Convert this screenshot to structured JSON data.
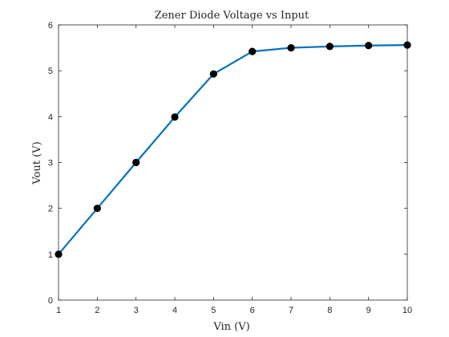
{
  "chart_data": {
    "type": "line",
    "title": "Zener Diode Voltage vs Input",
    "xlabel": "Vin (V)",
    "ylabel": "Vout (V)",
    "xlim": [
      1,
      10
    ],
    "ylim": [
      0,
      6
    ],
    "xticks": [
      1,
      2,
      3,
      4,
      5,
      6,
      7,
      8,
      9,
      10
    ],
    "yticks": [
      0,
      1,
      2,
      3,
      4,
      5,
      6
    ],
    "grid": false,
    "series": [
      {
        "x": [
          1,
          2,
          3,
          4,
          5,
          6,
          7,
          8,
          9,
          10
        ],
        "y": [
          1.0,
          2.0,
          3.0,
          3.99,
          4.93,
          5.42,
          5.5,
          5.53,
          5.55,
          5.56
        ],
        "line_color": "#0072BD",
        "marker_color": "#000000"
      }
    ]
  }
}
